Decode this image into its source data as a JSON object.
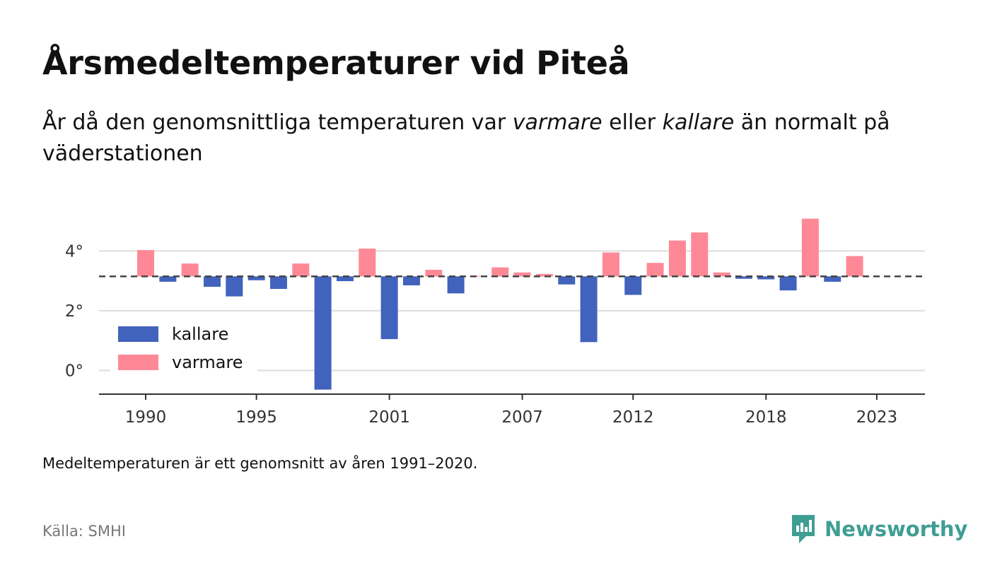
{
  "title": "Årsmedeltemperaturer vid Piteå",
  "subtitle": {
    "pre": "År då den genomsnittliga temperaturen var ",
    "warm_word": "varmare",
    "mid": " eller ",
    "cold_word": "kallare",
    "post": " än normalt på väderstationen"
  },
  "note": "Medeltemperaturen är ett genomsnitt av åren 1991–2020.",
  "source": "Källa: SMHI",
  "brand": "Newsworthy",
  "colors": {
    "warm": "#ff8896",
    "cold": "#4163bd",
    "brand": "#3f9e94",
    "grid": "#dddddd",
    "normal_line": "#444444"
  },
  "chart_data": {
    "type": "bar",
    "baseline": 3.15,
    "ylim": [
      -0.8,
      5.2
    ],
    "y_ticks": [
      0,
      2,
      4
    ],
    "y_tick_labels": [
      "0°",
      "2°",
      "4°"
    ],
    "x_ticks": [
      1990,
      1995,
      2001,
      2007,
      2012,
      2018,
      2023
    ],
    "x_tick_labels": [
      "1990",
      "1995",
      "2001",
      "2007",
      "2012",
      "2018",
      "2023"
    ],
    "legend": [
      {
        "key": "cold",
        "label": "kallare"
      },
      {
        "key": "warm",
        "label": "varmare"
      }
    ],
    "legend_position": "bottom-left",
    "grid": true,
    "years": [
      1990,
      1991,
      1992,
      1993,
      1994,
      1995,
      1996,
      1997,
      1998,
      1999,
      2000,
      2001,
      2002,
      2003,
      2004,
      2005,
      2006,
      2007,
      2008,
      2009,
      2010,
      2011,
      2012,
      2013,
      2014,
      2015,
      2016,
      2017,
      2018,
      2019,
      2020,
      2021,
      2022
    ],
    "values": [
      4.03,
      2.97,
      3.58,
      2.8,
      2.48,
      3.02,
      2.73,
      3.58,
      -0.64,
      2.99,
      4.08,
      1.05,
      2.85,
      3.37,
      2.58,
      3.17,
      3.45,
      3.28,
      3.23,
      2.88,
      0.95,
      3.95,
      2.53,
      3.6,
      4.35,
      4.62,
      3.28,
      3.07,
      3.05,
      2.68,
      5.08,
      2.97,
      3.83
    ]
  }
}
